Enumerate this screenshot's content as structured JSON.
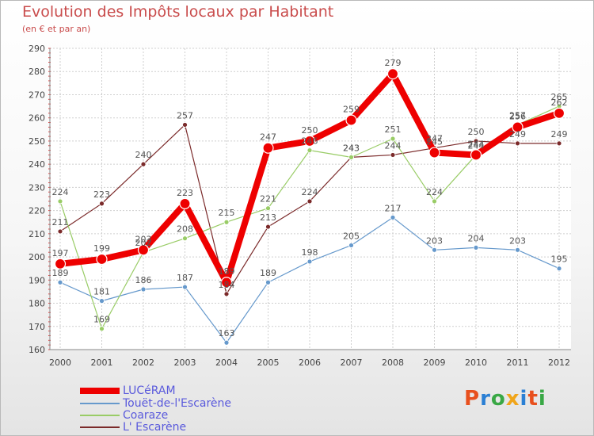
{
  "chart_data": {
    "type": "line",
    "title": "Evolution des Impôts locaux par Habitant",
    "subtitle": "(en € et par an)",
    "xlabel": "",
    "ylabel": "",
    "ylim": [
      160,
      290
    ],
    "yticks": [
      160,
      170,
      180,
      190,
      200,
      210,
      220,
      230,
      240,
      250,
      260,
      270,
      280,
      290
    ],
    "x": [
      "2000",
      "2001",
      "2002",
      "2003",
      "2004",
      "2005",
      "2006",
      "2007",
      "2008",
      "2009",
      "2010",
      "2011",
      "2012"
    ],
    "series": [
      {
        "name": "L' Escarène",
        "color": "#7b2a2a",
        "values": [
          211,
          223,
          240,
          257,
          184,
          213,
          224,
          243,
          244,
          247,
          250,
          249,
          249
        ]
      },
      {
        "name": "Touët-de-l'Escarène",
        "color": "#6699cc",
        "values": [
          189,
          181,
          186,
          187,
          163,
          189,
          198,
          205,
          217,
          203,
          204,
          203,
          195
        ]
      },
      {
        "name": "Coaraze",
        "color": "#99cc66",
        "values": [
          224,
          169,
          202,
          208,
          215,
          221,
          246,
          243,
          251,
          224,
          244,
          257,
          265
        ]
      },
      {
        "name": "LUCéRAM",
        "color": "#ee0000",
        "values": [
          197,
          199,
          203,
          223,
          189,
          247,
          250,
          259,
          279,
          245,
          244,
          256,
          262
        ]
      }
    ],
    "legend": [
      "LUCéRAM",
      "Touët-de-l'Escarène",
      "Coaraze",
      "L' Escarène"
    ],
    "legend_position": "bottom-left",
    "grid": true
  },
  "logo": {
    "text": "Proxiti",
    "colors": [
      "#e8501e",
      "#2a7fd4",
      "#39a845",
      "#f0a51a",
      "#2a7fd4",
      "#e8501e",
      "#39a845"
    ]
  }
}
